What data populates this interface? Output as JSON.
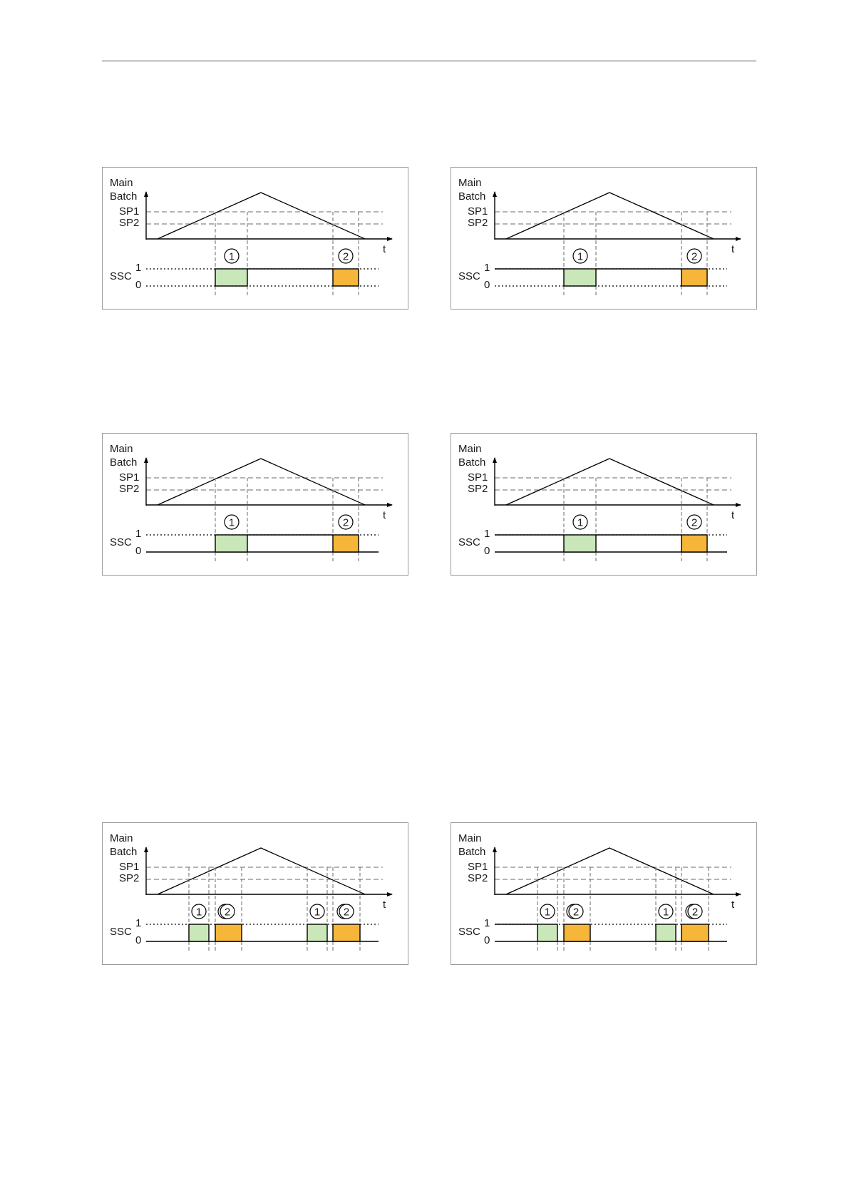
{
  "colors": {
    "sp1_window": "#c9e7b8",
    "sp2_window": "#f5b63a",
    "axis": "#000000",
    "guide": "#888888"
  },
  "labels": {
    "y_axis_line1": "Main",
    "y_axis_line2": "Batch",
    "setpoint_1": "SP1",
    "setpoint_2": "SP2",
    "time_axis": "t",
    "output_signal": "SSC",
    "level_high": "1",
    "level_low": "0",
    "marker_1": "1",
    "marker_2": "2"
  },
  "diagrams": [
    {
      "name": "top-left",
      "low_state_style": "dotted",
      "mode": "single"
    },
    {
      "name": "top-right",
      "low_state_style": "dotted",
      "mode": "single"
    },
    {
      "name": "middle-left",
      "low_state_style": "solid",
      "mode": "single"
    },
    {
      "name": "middle-right",
      "low_state_style": "solid",
      "mode": "single"
    },
    {
      "name": "bottom-left",
      "low_state_style": "solid",
      "mode": "double"
    },
    {
      "name": "bottom-right",
      "low_state_style": "solid",
      "mode": "double"
    }
  ]
}
